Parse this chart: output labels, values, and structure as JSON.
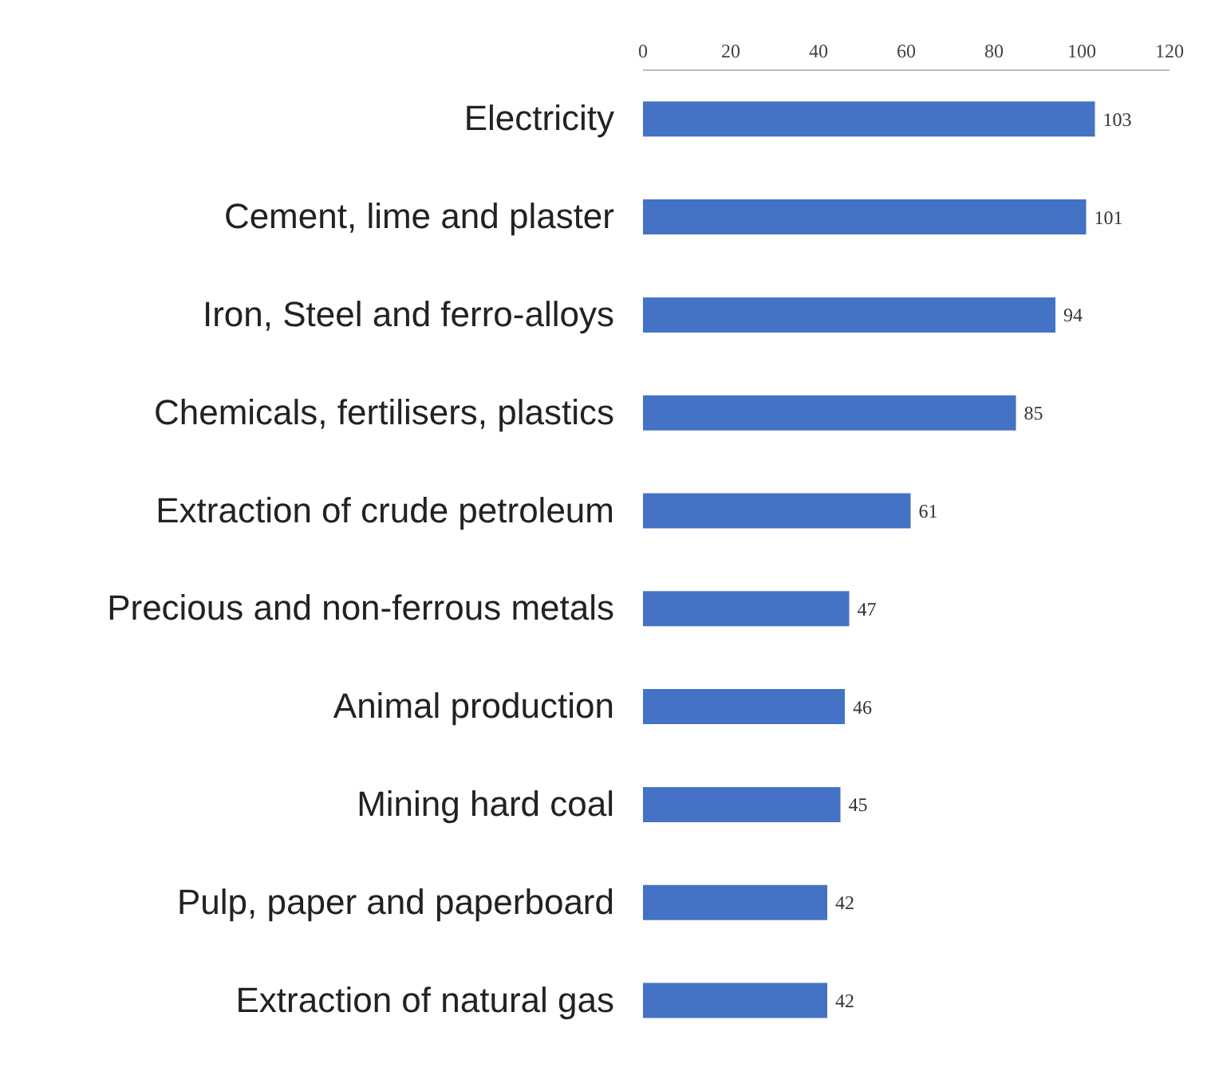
{
  "chart_data": {
    "type": "bar",
    "orientation": "horizontal",
    "categories": [
      "Electricity",
      "Cement, lime and plaster",
      "Iron, Steel and ferro-alloys",
      "Chemicals, fertilisers, plastics",
      "Extraction of crude petroleum",
      "Precious and non-ferrous metals",
      "Animal production",
      "Mining hard coal",
      "Pulp, paper and paperboard",
      "Extraction of natural gas"
    ],
    "values": [
      103,
      101,
      94,
      85,
      61,
      47,
      46,
      45,
      42,
      42
    ],
    "color": "#4472c4",
    "xlim": [
      0,
      120
    ],
    "xticks": [
      0,
      20,
      40,
      60,
      80,
      100,
      120
    ],
    "data_labels": true,
    "grid": false,
    "legend": false
  }
}
